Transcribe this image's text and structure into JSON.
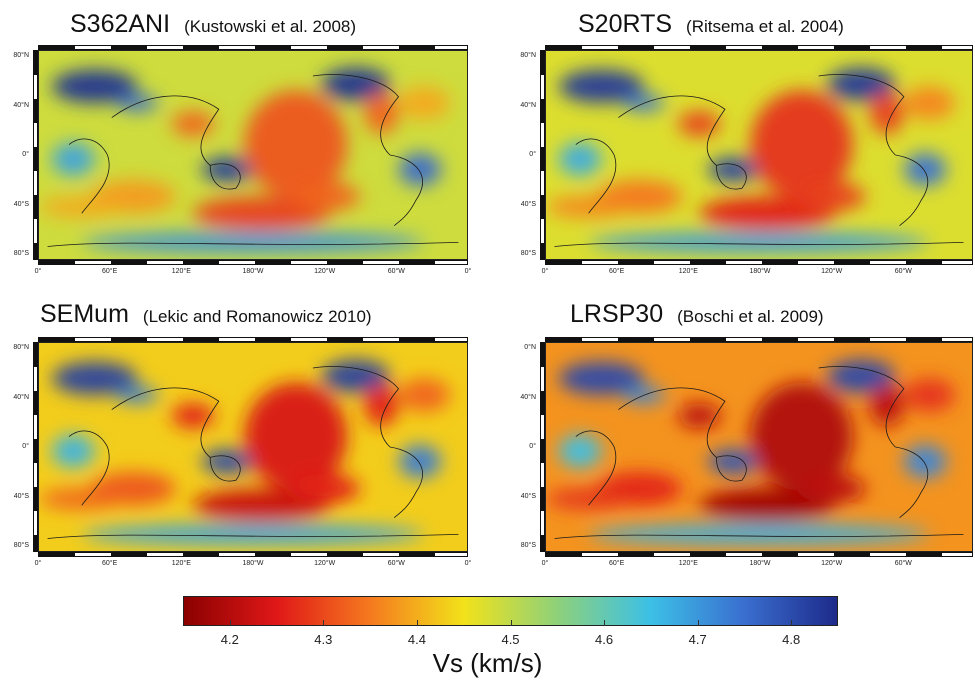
{
  "panels": [
    {
      "model": "S362ANI",
      "reference": "(Kustowski et al. 2008)",
      "variant": 0
    },
    {
      "model": "S20RTS",
      "reference": "(Ritsema et al. 2004)",
      "variant": 1
    },
    {
      "model": "SEMum",
      "reference": "(Lekic and Romanowicz 2010)",
      "variant": 2
    },
    {
      "model": "LRSP30",
      "reference": "(Boschi et al. 2009)",
      "variant": 3
    }
  ],
  "map_axes": {
    "lat_ticks": [
      "80°N",
      "40°N",
      "0°",
      "40°S",
      "80°S"
    ],
    "lon_ticks": [
      "0°",
      "60°E",
      "120°E",
      "180°W",
      "120°W",
      "60°W",
      "0°"
    ],
    "lat_ticks_lrsp30": [
      "0°N",
      "40°N",
      "0°",
      "40°S",
      "80°S"
    ]
  },
  "colorbar": {
    "label": "Vs (km/s)",
    "ticks": [
      "4.2",
      "4.3",
      "4.4",
      "4.5",
      "4.6",
      "4.7",
      "4.8"
    ],
    "tick_values": [
      4.2,
      4.3,
      4.4,
      4.5,
      4.6,
      4.7,
      4.8
    ],
    "range": [
      4.15,
      4.85
    ],
    "colors": [
      "#8b0000",
      "#e01818",
      "#f57a1f",
      "#f2e21a",
      "#8ed17a",
      "#3cc0e6",
      "#3a6fd0",
      "#1d2a8a"
    ]
  }
}
